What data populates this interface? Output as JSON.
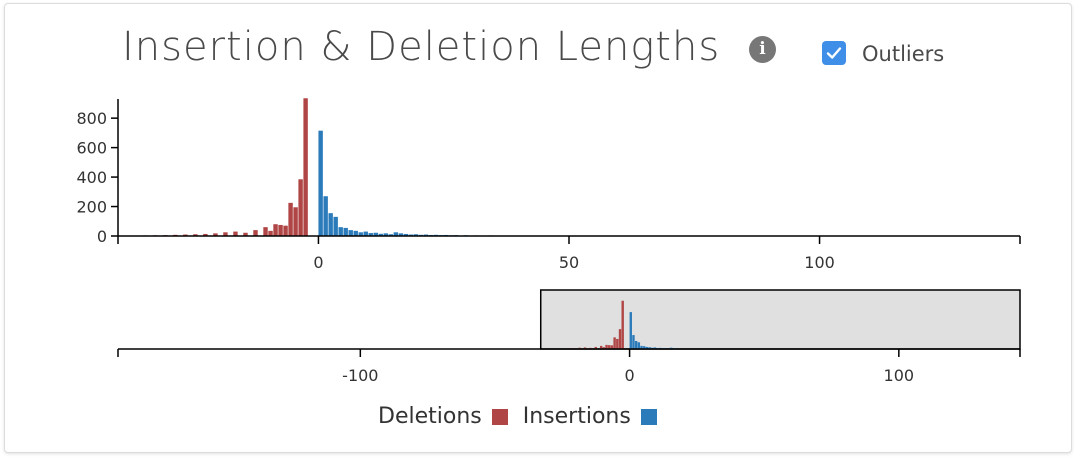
{
  "header": {
    "title": "Insertion & Deletion Lengths",
    "info_icon": "info-icon",
    "outliers_label": "Outliers",
    "outliers_checked": true
  },
  "colors": {
    "deletions": "#b04545",
    "insertions": "#2b7bba",
    "checkbox": "#3f8fe8",
    "brush_fill": "#e0e0e0"
  },
  "legend": {
    "deletions_label": "Deletions",
    "insertions_label": "Insertions"
  },
  "chart_data": [
    {
      "type": "bar",
      "name": "main",
      "title": "",
      "xlabel": "",
      "ylabel": "",
      "xlim": [
        -40,
        140
      ],
      "ylim": [
        0,
        930
      ],
      "x_ticks": [
        0,
        50,
        100
      ],
      "y_ticks": [
        0,
        200,
        400,
        600,
        800
      ],
      "grid": false,
      "series": [
        {
          "name": "Deletions",
          "x": [
            -37,
            -35,
            -33,
            -31,
            -29,
            -27,
            -25,
            -23,
            -21,
            -19,
            -17,
            -15,
            -13,
            -11,
            -10,
            -9,
            -8,
            -7,
            -6,
            -5,
            -4,
            -3,
            -2,
            -1
          ],
          "values": [
            3,
            4,
            5,
            6,
            8,
            10,
            12,
            14,
            18,
            25,
            30,
            22,
            40,
            60,
            35,
            80,
            75,
            70,
            225,
            195,
            385,
            935,
            0,
            0
          ]
        },
        {
          "name": "Insertions",
          "x": [
            1,
            2,
            3,
            4,
            5,
            6,
            7,
            8,
            9,
            10,
            11,
            12,
            13,
            14,
            15,
            16,
            17,
            18,
            19,
            20,
            21,
            22,
            23,
            24,
            25,
            26,
            27,
            28,
            30,
            32,
            35,
            38,
            42,
            46,
            50
          ],
          "values": [
            715,
            270,
            155,
            130,
            60,
            55,
            40,
            35,
            25,
            30,
            20,
            22,
            15,
            18,
            12,
            25,
            18,
            14,
            10,
            12,
            8,
            10,
            7,
            8,
            6,
            7,
            5,
            6,
            5,
            4,
            4,
            3,
            3,
            2,
            2
          ]
        }
      ]
    },
    {
      "type": "bar",
      "name": "overview",
      "title": "",
      "xlabel": "",
      "ylabel": "",
      "xlim": [
        -190,
        145
      ],
      "x_ticks": [
        -100,
        0,
        100
      ],
      "brush_range": [
        -33,
        145
      ],
      "grid": false
    }
  ]
}
